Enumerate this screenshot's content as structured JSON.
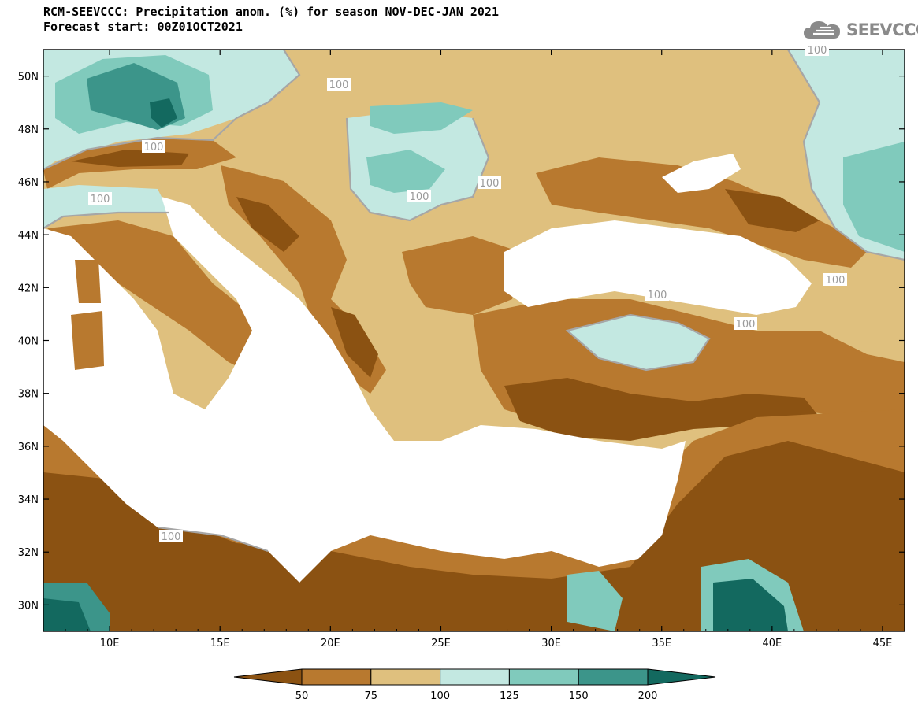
{
  "title": {
    "line1": "RCM-SEEVCCC: Precipitation anom. (%) for season NOV-DEC-JAN 2021",
    "line2": "Forecast start: 00Z01OCT2021"
  },
  "logo": {
    "text": "SEEVCCC",
    "icon": "cloud-icon"
  },
  "map": {
    "lon_range": [
      7,
      46
    ],
    "lat_range": [
      29,
      51
    ],
    "lon_ticks": [
      "10E",
      "15E",
      "20E",
      "25E",
      "30E",
      "35E",
      "40E",
      "45E"
    ],
    "lat_ticks": [
      "30N",
      "32N",
      "34N",
      "36N",
      "38N",
      "40N",
      "42N",
      "44N",
      "46N",
      "48N",
      "50N"
    ],
    "contour_labels": [
      "100",
      "100",
      "100",
      "100",
      "100",
      "100",
      "100",
      "100",
      "100",
      "100"
    ]
  },
  "colorbar": {
    "levels": [
      "50",
      "75",
      "100",
      "125",
      "150",
      "200"
    ],
    "colors": [
      "#8b5212",
      "#b8792f",
      "#dfc07e",
      "#c3e8e1",
      "#80cabc",
      "#3c958a",
      "#13695f"
    ]
  }
}
